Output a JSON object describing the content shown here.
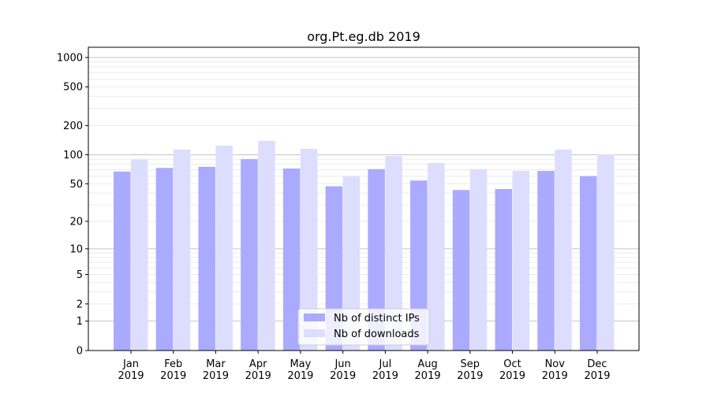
{
  "chart_data": {
    "type": "bar",
    "title": "org.Pt.eg.db 2019",
    "xlabel": "",
    "ylabel": "",
    "yscale": "symlog (log of value+1)",
    "ylim": [
      0,
      1300
    ],
    "yticks": [
      0,
      1,
      2,
      5,
      10,
      20,
      50,
      100,
      200,
      500,
      1000
    ],
    "grid": true,
    "legend_placement": "bottom-center",
    "categories": [
      [
        "Jan",
        "2019"
      ],
      [
        "Feb",
        "2019"
      ],
      [
        "Mar",
        "2019"
      ],
      [
        "Apr",
        "2019"
      ],
      [
        "May",
        "2019"
      ],
      [
        "Jun",
        "2019"
      ],
      [
        "Jul",
        "2019"
      ],
      [
        "Aug",
        "2019"
      ],
      [
        "Sep",
        "2019"
      ],
      [
        "Oct",
        "2019"
      ],
      [
        "Nov",
        "2019"
      ],
      [
        "Dec",
        "2019"
      ]
    ],
    "series": [
      {
        "name": "Nb of distinct IPs",
        "color": "#aaaaff",
        "values": [
          67,
          73,
          75,
          90,
          72,
          47,
          71,
          54,
          43,
          44,
          68,
          60
        ]
      },
      {
        "name": "Nb of downloads",
        "color": "#ddddff",
        "values": [
          89,
          113,
          124,
          139,
          115,
          60,
          97,
          82,
          71,
          68,
          113,
          101
        ]
      }
    ]
  }
}
